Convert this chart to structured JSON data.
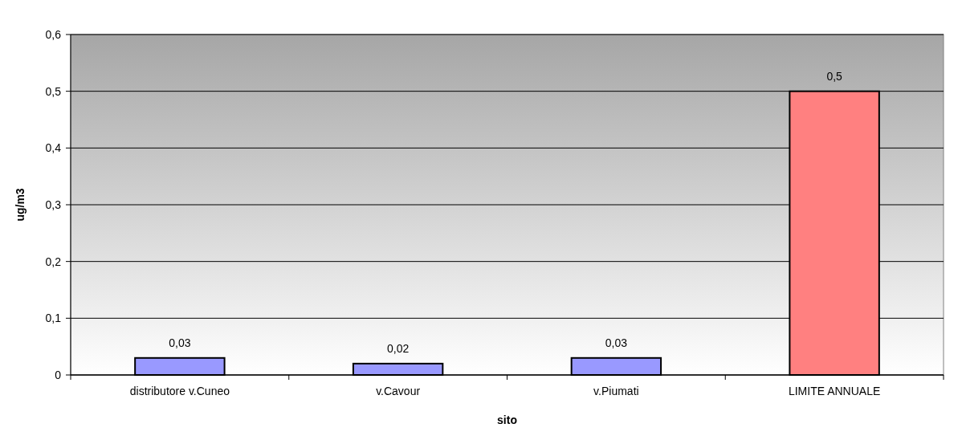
{
  "chart_data": {
    "type": "bar",
    "xlabel": "sito",
    "ylabel": "ug/m3",
    "categories": [
      "distributore v.Cuneo",
      "v.Cavour",
      "v.Piumati",
      "LIMITE ANNUALE"
    ],
    "values": [
      0.03,
      0.02,
      0.03,
      0.5
    ],
    "colors": [
      "#9999ff",
      "#9999ff",
      "#9999ff",
      "#ff8080"
    ],
    "value_labels": [
      "0,03",
      "0,02",
      "0,03",
      "0,5"
    ],
    "ylim": [
      0,
      0.6
    ],
    "yticks": [
      0,
      {
        "value": 0.1,
        "label": "0,1"
      },
      {
        "value": 0.2,
        "label": "0,2"
      },
      {
        "value": 0.3,
        "label": "0,3"
      },
      {
        "value": 0.4,
        "label": "0,4"
      },
      {
        "value": 0.5,
        "label": "0,5"
      },
      {
        "value": 0.6,
        "label": "0,6"
      }
    ],
    "grid": "y"
  }
}
